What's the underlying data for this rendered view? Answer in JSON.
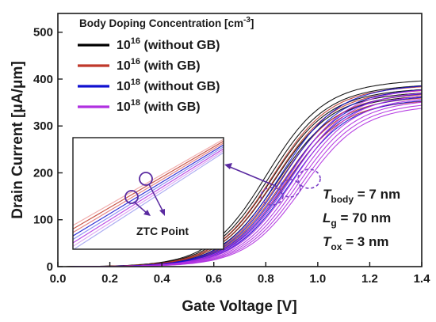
{
  "chart_data": {
    "type": "line",
    "xlabel": "Gate Voltage [V]",
    "ylabel": "Drain Current [μA/μm]",
    "xlim": [
      0.0,
      1.4
    ],
    "ylim": [
      0,
      540
    ],
    "xticks": [
      "0.0",
      "0.2",
      "0.4",
      "0.6",
      "0.8",
      "1.0",
      "1.2",
      "1.4"
    ],
    "yticks": [
      "0",
      "100",
      "200",
      "300",
      "400",
      "500"
    ],
    "legend": {
      "title": "Body Doping Concentration [cm",
      "title_sup": "-3",
      "title_end": "]",
      "placement": "top-left"
    },
    "series": [
      {
        "name_base": "10",
        "name_sup": "16",
        "name_rest": "(without GB)",
        "color": "#000000",
        "sample_vth": [
          0.8,
          0.81,
          0.82,
          0.83,
          0.84
        ],
        "sample_imax": [
          390,
          380,
          372,
          365,
          358
        ]
      },
      {
        "name_base": "10",
        "name_sup": "16",
        "name_rest": "(with GB)",
        "color": "#c0392b",
        "sample_vth": [
          0.82,
          0.83,
          0.85,
          0.86,
          0.87
        ],
        "sample_imax": [
          378,
          370,
          362,
          355,
          348
        ]
      },
      {
        "name_base": "10",
        "name_sup": "18",
        "name_rest": "(without GB)",
        "color": "#1010d0",
        "sample_vth": [
          0.85,
          0.86,
          0.87,
          0.88,
          0.89
        ],
        "sample_imax": [
          380,
          372,
          364,
          357,
          350
        ]
      },
      {
        "name_base": "10",
        "name_sup": "18",
        "name_rest": "(with GB)",
        "color": "#b030e0",
        "sample_vth": [
          0.88,
          0.89,
          0.9,
          0.91,
          0.92,
          0.93,
          0.94
        ],
        "sample_imax": [
          372,
          366,
          360,
          354,
          348,
          342,
          336
        ]
      }
    ],
    "annotations": {
      "params": [
        {
          "sym": "T",
          "sub": "body",
          "val": "= 7 nm"
        },
        {
          "sym": "L",
          "sub": "g",
          "val": "= 70 nm"
        },
        {
          "sym": "T",
          "sub": "ox",
          "val": "= 3 nm"
        }
      ],
      "inset_label": "ZTC Point"
    }
  }
}
